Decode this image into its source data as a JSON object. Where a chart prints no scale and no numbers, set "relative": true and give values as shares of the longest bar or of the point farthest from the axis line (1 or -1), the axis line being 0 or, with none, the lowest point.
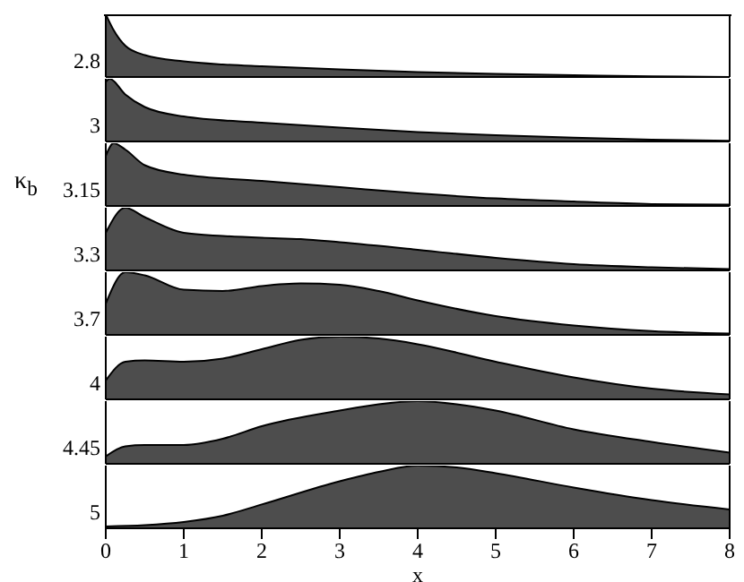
{
  "chart_data": [
    {
      "type": "area",
      "relative": true,
      "tick_labels": false,
      "color": "#4d4d4d",
      "xlim": [
        0,
        8
      ],
      "annotations": [
        "2.8"
      ],
      "x": [
        0,
        0.1,
        0.25,
        0.5,
        1,
        1.5,
        2,
        3,
        4,
        5,
        6,
        7,
        8
      ],
      "values": [
        1,
        0.75,
        0.5,
        0.35,
        0.25,
        0.2,
        0.17,
        0.12,
        0.08,
        0.05,
        0.03,
        0.01,
        0
      ]
    },
    {
      "type": "area",
      "relative": true,
      "tick_labels": false,
      "color": "#4d4d4d",
      "xlim": [
        0,
        8
      ],
      "annotations": [
        "3"
      ],
      "x": [
        0,
        0.05,
        0.25,
        0.5,
        1,
        2,
        3,
        4,
        5,
        6,
        7,
        8
      ],
      "values": [
        0.95,
        1,
        0.75,
        0.55,
        0.4,
        0.3,
        0.22,
        0.15,
        0.1,
        0.06,
        0.03,
        0.01
      ]
    },
    {
      "type": "area",
      "relative": true,
      "tick_labels": false,
      "color": "#4d4d4d",
      "xlim": [
        0,
        8
      ],
      "annotations": [
        "3.15"
      ],
      "x": [
        0,
        0.1,
        0.25,
        0.5,
        1,
        2,
        3,
        4,
        5,
        6,
        7,
        8
      ],
      "values": [
        0.8,
        1,
        0.9,
        0.65,
        0.5,
        0.4,
        0.3,
        0.2,
        0.12,
        0.07,
        0.03,
        0.02
      ]
    },
    {
      "type": "area",
      "relative": true,
      "tick_labels": false,
      "color": "#4d4d4d",
      "xlim": [
        0,
        8
      ],
      "ylabel": "κ$_{b}$",
      "annotations": [
        "3.3"
      ],
      "x": [
        0,
        0.25,
        0.5,
        1,
        1.5,
        2,
        2.5,
        3,
        4,
        5,
        6,
        7,
        8
      ],
      "values": [
        0.6,
        1,
        0.85,
        0.6,
        0.55,
        0.52,
        0.5,
        0.45,
        0.33,
        0.2,
        0.1,
        0.05,
        0.02
      ]
    },
    {
      "type": "area",
      "relative": true,
      "tick_labels": false,
      "color": "#4d4d4d",
      "xlim": [
        0,
        8
      ],
      "annotations": [
        "3.7"
      ],
      "x": [
        0,
        0.25,
        0.5,
        1,
        1.5,
        2,
        2.5,
        3,
        3.5,
        4,
        5,
        6,
        7,
        8
      ],
      "values": [
        0.5,
        1,
        0.95,
        0.72,
        0.7,
        0.78,
        0.82,
        0.8,
        0.7,
        0.55,
        0.3,
        0.15,
        0.06,
        0.02
      ]
    },
    {
      "type": "area",
      "relative": true,
      "tick_labels": false,
      "color": "#4d4d4d",
      "xlim": [
        0,
        8
      ],
      "annotations": [
        "4"
      ],
      "x": [
        0,
        0.25,
        0.5,
        1,
        1.5,
        2,
        2.5,
        3,
        3.5,
        4,
        5,
        6,
        7,
        8
      ],
      "values": [
        0.3,
        0.6,
        0.62,
        0.6,
        0.65,
        0.8,
        0.95,
        1,
        0.97,
        0.88,
        0.6,
        0.35,
        0.17,
        0.08
      ]
    },
    {
      "type": "area",
      "relative": true,
      "tick_labels": false,
      "color": "#4d4d4d",
      "xlim": [
        0,
        8
      ],
      "annotations": [
        "4.45"
      ],
      "x": [
        0,
        0.25,
        0.5,
        1,
        1.5,
        2,
        3,
        3.5,
        4,
        4.5,
        5,
        6,
        7,
        8
      ],
      "values": [
        0.12,
        0.28,
        0.3,
        0.3,
        0.4,
        0.6,
        0.85,
        0.95,
        1,
        0.95,
        0.85,
        0.55,
        0.35,
        0.18
      ]
    },
    {
      "type": "area",
      "relative": true,
      "tick_labels": "x",
      "color": "#4d4d4d",
      "xlim": [
        0,
        8
      ],
      "xticks": [
        0,
        1,
        2,
        3,
        4,
        5,
        6,
        7,
        8
      ],
      "xlabel": "x",
      "annotations": [
        "5"
      ],
      "x": [
        0,
        0.5,
        1,
        1.5,
        2,
        3,
        3.5,
        4,
        4.5,
        5,
        6,
        7,
        8
      ],
      "values": [
        0.03,
        0.05,
        0.1,
        0.2,
        0.38,
        0.75,
        0.9,
        1,
        0.97,
        0.88,
        0.65,
        0.45,
        0.3
      ]
    }
  ]
}
